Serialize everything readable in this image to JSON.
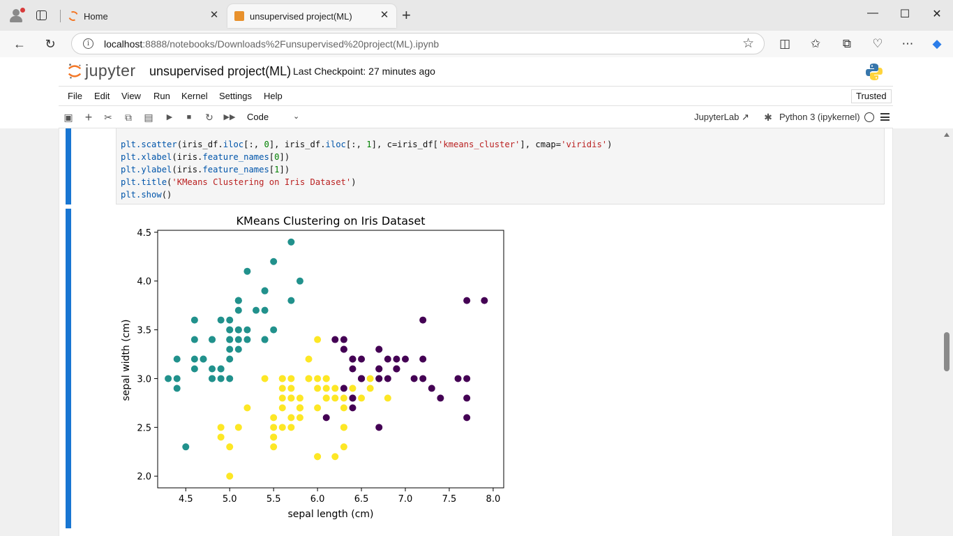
{
  "browser": {
    "tabs": [
      {
        "label": "Home",
        "active": false
      },
      {
        "label": "unsupervised project(ML)",
        "active": true
      }
    ],
    "url_host": "localhost",
    "url_path": ":8888/notebooks/Downloads%2Funsupervised%20project(ML).ipynb"
  },
  "notebook": {
    "logo_text": "jupyter",
    "name": "unsupervised project(ML)",
    "checkpoint": "Last Checkpoint: 27 minutes ago",
    "menu": [
      "File",
      "Edit",
      "View",
      "Run",
      "Kernel",
      "Settings",
      "Help"
    ],
    "trusted": "Trusted",
    "cell_type": "Code",
    "jupyterlab_label": "JupyterLab",
    "kernel_name": "Python 3 (ipykernel)"
  },
  "code_lines": [
    "plt.scatter(iris_df.iloc[:, 0], iris_df.iloc[:, 1], c=iris_df['kmeans_cluster'], cmap='viridis')",
    "plt.xlabel(iris.feature_names[0])",
    "plt.ylabel(iris.feature_names[1])",
    "plt.title('KMeans Clustering on Iris Dataset')",
    "plt.show()"
  ],
  "chart_data": {
    "type": "scatter",
    "title": "KMeans Clustering on Iris Dataset",
    "xlabel": "sepal length (cm)",
    "ylabel": "sepal width (cm)",
    "xlim": [
      4.18,
      8.12
    ],
    "ylim": [
      1.88,
      4.52
    ],
    "xticks": [
      "4.5",
      "5.0",
      "5.5",
      "6.0",
      "6.5",
      "7.0",
      "7.5",
      "8.0"
    ],
    "yticks": [
      "2.0",
      "2.5",
      "3.0",
      "3.5",
      "4.0",
      "4.5"
    ],
    "colors": {
      "0": "#440154",
      "1": "#21918c",
      "2": "#fde725"
    },
    "grid": false,
    "points": [
      [
        5.1,
        3.5,
        1
      ],
      [
        4.9,
        3.0,
        1
      ],
      [
        4.7,
        3.2,
        1
      ],
      [
        4.6,
        3.1,
        1
      ],
      [
        5.0,
        3.6,
        1
      ],
      [
        5.4,
        3.9,
        1
      ],
      [
        4.6,
        3.4,
        1
      ],
      [
        5.0,
        3.4,
        1
      ],
      [
        4.4,
        2.9,
        1
      ],
      [
        4.9,
        3.1,
        1
      ],
      [
        5.4,
        3.7,
        1
      ],
      [
        4.8,
        3.4,
        1
      ],
      [
        4.8,
        3.0,
        1
      ],
      [
        4.3,
        3.0,
        1
      ],
      [
        5.8,
        4.0,
        1
      ],
      [
        5.7,
        4.4,
        1
      ],
      [
        5.4,
        3.9,
        1
      ],
      [
        5.1,
        3.5,
        1
      ],
      [
        5.7,
        3.8,
        1
      ],
      [
        5.1,
        3.8,
        1
      ],
      [
        5.4,
        3.4,
        1
      ],
      [
        5.1,
        3.7,
        1
      ],
      [
        4.6,
        3.6,
        1
      ],
      [
        5.1,
        3.3,
        1
      ],
      [
        4.8,
        3.4,
        1
      ],
      [
        5.0,
        3.0,
        1
      ],
      [
        5.0,
        3.4,
        1
      ],
      [
        5.2,
        3.5,
        1
      ],
      [
        5.2,
        3.4,
        1
      ],
      [
        4.7,
        3.2,
        1
      ],
      [
        4.8,
        3.1,
        1
      ],
      [
        5.4,
        3.4,
        1
      ],
      [
        5.2,
        4.1,
        1
      ],
      [
        5.5,
        4.2,
        1
      ],
      [
        4.9,
        3.1,
        1
      ],
      [
        5.0,
        3.2,
        1
      ],
      [
        5.5,
        3.5,
        1
      ],
      [
        4.9,
        3.6,
        1
      ],
      [
        4.4,
        3.0,
        1
      ],
      [
        5.1,
        3.4,
        1
      ],
      [
        5.0,
        3.5,
        1
      ],
      [
        4.5,
        2.3,
        1
      ],
      [
        4.4,
        3.2,
        1
      ],
      [
        5.0,
        3.5,
        1
      ],
      [
        5.1,
        3.8,
        1
      ],
      [
        4.8,
        3.0,
        1
      ],
      [
        5.1,
        3.8,
        1
      ],
      [
        4.6,
        3.2,
        1
      ],
      [
        5.3,
        3.7,
        1
      ],
      [
        5.0,
        3.3,
        1
      ],
      [
        7.0,
        3.2,
        0
      ],
      [
        6.4,
        3.2,
        0
      ],
      [
        6.9,
        3.1,
        0
      ],
      [
        5.5,
        2.3,
        2
      ],
      [
        6.5,
        2.8,
        2
      ],
      [
        5.7,
        2.8,
        2
      ],
      [
        6.3,
        3.3,
        0
      ],
      [
        4.9,
        2.4,
        2
      ],
      [
        6.6,
        2.9,
        2
      ],
      [
        5.2,
        2.7,
        2
      ],
      [
        5.0,
        2.0,
        2
      ],
      [
        5.9,
        3.0,
        2
      ],
      [
        6.0,
        2.2,
        2
      ],
      [
        6.1,
        2.9,
        2
      ],
      [
        5.6,
        2.9,
        2
      ],
      [
        6.7,
        3.1,
        0
      ],
      [
        5.6,
        3.0,
        2
      ],
      [
        5.8,
        2.7,
        2
      ],
      [
        6.2,
        2.2,
        2
      ],
      [
        5.6,
        2.5,
        2
      ],
      [
        5.9,
        3.2,
        2
      ],
      [
        6.1,
        2.8,
        2
      ],
      [
        6.3,
        2.5,
        2
      ],
      [
        6.1,
        2.8,
        2
      ],
      [
        6.4,
        2.9,
        2
      ],
      [
        6.6,
        3.0,
        2
      ],
      [
        6.8,
        2.8,
        2
      ],
      [
        6.7,
        3.0,
        0
      ],
      [
        6.0,
        2.9,
        2
      ],
      [
        5.7,
        2.6,
        2
      ],
      [
        5.5,
        2.4,
        2
      ],
      [
        5.5,
        2.4,
        2
      ],
      [
        5.8,
        2.7,
        2
      ],
      [
        6.0,
        2.7,
        2
      ],
      [
        5.4,
        3.0,
        2
      ],
      [
        6.0,
        3.4,
        2
      ],
      [
        6.7,
        3.1,
        0
      ],
      [
        6.3,
        2.3,
        2
      ],
      [
        5.6,
        3.0,
        2
      ],
      [
        5.5,
        2.5,
        2
      ],
      [
        5.5,
        2.6,
        2
      ],
      [
        6.1,
        3.0,
        2
      ],
      [
        5.8,
        2.6,
        2
      ],
      [
        5.0,
        2.3,
        2
      ],
      [
        5.6,
        2.7,
        2
      ],
      [
        5.7,
        3.0,
        2
      ],
      [
        5.7,
        2.9,
        2
      ],
      [
        6.2,
        2.9,
        2
      ],
      [
        5.1,
        2.5,
        2
      ],
      [
        5.7,
        2.8,
        2
      ],
      [
        6.3,
        3.3,
        0
      ],
      [
        5.8,
        2.7,
        2
      ],
      [
        7.1,
        3.0,
        0
      ],
      [
        6.3,
        2.9,
        0
      ],
      [
        6.5,
        3.0,
        0
      ],
      [
        7.6,
        3.0,
        0
      ],
      [
        4.9,
        2.5,
        2
      ],
      [
        7.3,
        2.9,
        0
      ],
      [
        6.7,
        2.5,
        0
      ],
      [
        7.2,
        3.6,
        0
      ],
      [
        6.5,
        3.2,
        0
      ],
      [
        6.4,
        2.7,
        0
      ],
      [
        6.8,
        3.0,
        0
      ],
      [
        5.7,
        2.5,
        2
      ],
      [
        5.8,
        2.8,
        2
      ],
      [
        6.4,
        3.2,
        0
      ],
      [
        6.5,
        3.0,
        0
      ],
      [
        7.7,
        3.8,
        0
      ],
      [
        7.7,
        2.6,
        0
      ],
      [
        6.0,
        2.2,
        2
      ],
      [
        6.9,
        3.2,
        0
      ],
      [
        5.6,
        2.8,
        2
      ],
      [
        7.7,
        2.8,
        0
      ],
      [
        6.3,
        2.7,
        2
      ],
      [
        6.7,
        3.3,
        0
      ],
      [
        7.2,
        3.2,
        0
      ],
      [
        6.2,
        2.8,
        2
      ],
      [
        6.1,
        3.0,
        2
      ],
      [
        6.4,
        2.8,
        0
      ],
      [
        7.2,
        3.0,
        0
      ],
      [
        7.4,
        2.8,
        0
      ],
      [
        7.9,
        3.8,
        0
      ],
      [
        6.4,
        2.8,
        0
      ],
      [
        6.3,
        2.8,
        2
      ],
      [
        6.1,
        2.6,
        0
      ],
      [
        7.7,
        3.0,
        0
      ],
      [
        6.3,
        3.4,
        0
      ],
      [
        6.4,
        3.1,
        0
      ],
      [
        6.0,
        3.0,
        2
      ],
      [
        6.9,
        3.1,
        0
      ],
      [
        6.7,
        3.1,
        0
      ],
      [
        6.9,
        3.1,
        0
      ],
      [
        5.8,
        2.7,
        2
      ],
      [
        6.8,
        3.2,
        0
      ],
      [
        6.7,
        3.3,
        0
      ],
      [
        6.7,
        3.0,
        0
      ],
      [
        6.3,
        2.5,
        2
      ],
      [
        6.5,
        3.0,
        0
      ],
      [
        6.2,
        3.4,
        0
      ],
      [
        5.9,
        3.0,
        2
      ]
    ]
  }
}
